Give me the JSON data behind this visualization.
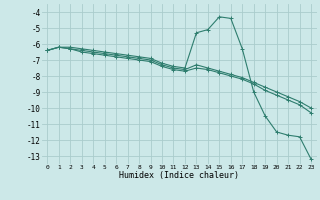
{
  "xlabel": "Humidex (Indice chaleur)",
  "ylabel": "",
  "bg_color": "#cce8e8",
  "grid_color": "#aacccc",
  "line_color": "#2e7d6e",
  "xlim": [
    -0.5,
    23.5
  ],
  "ylim": [
    -13.5,
    -3.5
  ],
  "yticks": [
    -4,
    -5,
    -6,
    -7,
    -8,
    -9,
    -10,
    -11,
    -12,
    -13
  ],
  "xticks": [
    0,
    1,
    2,
    3,
    4,
    5,
    6,
    7,
    8,
    9,
    10,
    11,
    12,
    13,
    14,
    15,
    16,
    17,
    18,
    19,
    20,
    21,
    22,
    23
  ],
  "lines": [
    {
      "x": [
        0,
        1,
        2,
        3,
        4,
        5,
        6,
        7,
        8,
        9,
        10,
        11,
        12,
        13,
        14,
        15,
        16,
        17,
        18,
        19,
        20,
        21,
        22,
        23
      ],
      "y": [
        -6.4,
        -6.2,
        -6.2,
        -6.3,
        -6.4,
        -6.5,
        -6.6,
        -6.7,
        -6.8,
        -6.9,
        -7.2,
        -7.4,
        -7.5,
        -5.3,
        -5.1,
        -4.3,
        -4.4,
        -6.3,
        -9.0,
        -10.5,
        -11.5,
        -11.7,
        -11.8,
        -13.2
      ]
    },
    {
      "x": [
        0,
        1,
        2,
        3,
        4,
        5,
        6,
        7,
        8,
        9,
        10,
        11,
        12,
        13,
        14,
        15,
        16,
        17,
        18,
        19,
        20,
        21,
        22,
        23
      ],
      "y": [
        -6.4,
        -6.2,
        -6.3,
        -6.4,
        -6.5,
        -6.6,
        -6.7,
        -6.8,
        -6.9,
        -7.0,
        -7.3,
        -7.5,
        -7.6,
        -7.3,
        -7.5,
        -7.7,
        -7.9,
        -8.1,
        -8.4,
        -8.7,
        -9.0,
        -9.3,
        -9.6,
        -10.0
      ]
    },
    {
      "x": [
        0,
        1,
        2,
        3,
        4,
        5,
        6,
        7,
        8,
        9,
        10,
        11,
        12,
        13,
        14,
        15,
        16,
        17,
        18,
        19,
        20,
        21,
        22,
        23
      ],
      "y": [
        -6.4,
        -6.2,
        -6.3,
        -6.5,
        -6.6,
        -6.7,
        -6.8,
        -6.9,
        -7.0,
        -7.1,
        -7.4,
        -7.6,
        -7.7,
        -7.5,
        -7.6,
        -7.8,
        -8.0,
        -8.2,
        -8.5,
        -8.9,
        -9.2,
        -9.5,
        -9.8,
        -10.3
      ]
    }
  ]
}
